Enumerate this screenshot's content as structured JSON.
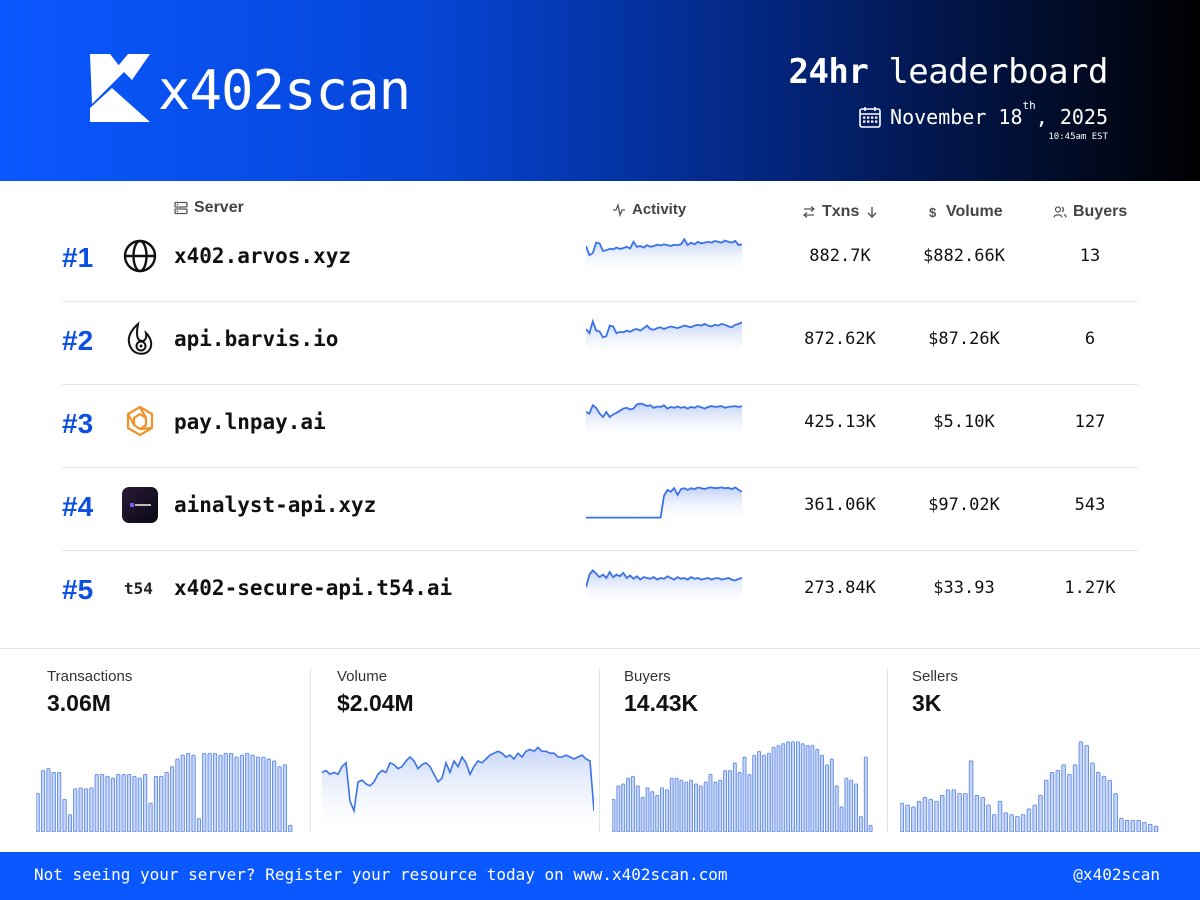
{
  "header": {
    "brand": "x402scan",
    "title_bold": "24hr",
    "title_rest": " leaderboard",
    "date_prefix": "November 18",
    "date_suffix": "th",
    "date_year": ", 2025",
    "time": "10:45am EST"
  },
  "columns": {
    "server": "Server",
    "activity": "Activity",
    "txns": "Txns",
    "volume": "Volume",
    "buyers": "Buyers"
  },
  "rows": [
    {
      "rank": "#1",
      "name": "x402.arvos.xyz",
      "txns": "882.7K",
      "volume": "$882.66K",
      "buyers": "13",
      "icon": "globe-icon",
      "activity": [
        62,
        40,
        45,
        70,
        68,
        50,
        52,
        55,
        54,
        58,
        55,
        57,
        60,
        56,
        72,
        60,
        62,
        58,
        64,
        60,
        62,
        65,
        63,
        66,
        64,
        62,
        65,
        64,
        66,
        78,
        64,
        70,
        66,
        72,
        68,
        70,
        72,
        70,
        74,
        72,
        70,
        75,
        72,
        70,
        74,
        64,
        66
      ]
    },
    {
      "rank": "#2",
      "name": "api.barvis.io",
      "txns": "872.62K",
      "volume": "$87.26K",
      "buyers": "6",
      "icon": "flame-icon",
      "activity": [
        62,
        52,
        80,
        58,
        56,
        42,
        45,
        70,
        68,
        52,
        55,
        54,
        58,
        55,
        60,
        62,
        58,
        64,
        70,
        62,
        60,
        64,
        66,
        62,
        65,
        68,
        66,
        64,
        67,
        70,
        68,
        66,
        70,
        72,
        70,
        74,
        70,
        68,
        72,
        70,
        74,
        72,
        68,
        66,
        72,
        74,
        78
      ]
    },
    {
      "rank": "#3",
      "name": "pay.lnpay.ai",
      "txns": "425.13K",
      "volume": "$5.10K",
      "buyers": "127",
      "icon": "hexagon-icon",
      "activity": [
        62,
        58,
        78,
        72,
        58,
        50,
        62,
        50,
        56,
        60,
        65,
        70,
        72,
        68,
        70,
        80,
        82,
        80,
        76,
        78,
        72,
        75,
        74,
        78,
        70,
        74,
        72,
        75,
        72,
        74,
        70,
        74,
        72,
        76,
        73,
        70,
        74,
        76,
        74,
        75,
        76,
        72,
        74,
        75,
        76,
        74,
        76
      ]
    },
    {
      "rank": "#4",
      "name": "ainalyst-api.xyz",
      "txns": "361.06K",
      "volume": "$97.02K",
      "buyers": "543",
      "icon": "ainalyst-logo",
      "activity": [
        8,
        8,
        8,
        8,
        8,
        8,
        8,
        8,
        8,
        8,
        8,
        8,
        8,
        8,
        8,
        8,
        8,
        8,
        8,
        8,
        8,
        8,
        8,
        60,
        74,
        70,
        78,
        62,
        76,
        78,
        74,
        78,
        76,
        80,
        78,
        76,
        79,
        80,
        78,
        79,
        80,
        78,
        79,
        76,
        80,
        74,
        70
      ]
    },
    {
      "rank": "#5",
      "name": "x402-secure-api.t54.ai",
      "txns": "273.84K",
      "volume": "$33.93",
      "buyers": "1.27K",
      "icon": "t54-logo",
      "activity": [
        40,
        70,
        80,
        72,
        64,
        70,
        62,
        76,
        64,
        70,
        66,
        74,
        62,
        68,
        60,
        66,
        58,
        64,
        62,
        60,
        64,
        58,
        62,
        60,
        66,
        62,
        58,
        64,
        60,
        62,
        58,
        64,
        60,
        62,
        58,
        60,
        62,
        58,
        61,
        62,
        58,
        60,
        62,
        58,
        56,
        60,
        62
      ]
    }
  ],
  "stats": [
    {
      "label": "Transactions",
      "value": "3.06M",
      "chart": "bars",
      "values": [
        40,
        64,
        66,
        62,
        62,
        34,
        18,
        45,
        46,
        45,
        46,
        60,
        60,
        58,
        56,
        60,
        60,
        60,
        58,
        56,
        60,
        30,
        58,
        58,
        62,
        68,
        76,
        80,
        82,
        80,
        14,
        82,
        82,
        82,
        80,
        82,
        82,
        78,
        80,
        82,
        80,
        78,
        78,
        76,
        74,
        68,
        70,
        7
      ]
    },
    {
      "label": "Volume",
      "value": "$2.04M",
      "chart": "area",
      "values": [
        60,
        62,
        58,
        60,
        58,
        66,
        70,
        30,
        20,
        50,
        52,
        48,
        46,
        50,
        58,
        62,
        60,
        70,
        68,
        64,
        66,
        72,
        76,
        72,
        64,
        68,
        70,
        66,
        58,
        50,
        54,
        70,
        60,
        72,
        66,
        76,
        70,
        58,
        66,
        72,
        70,
        74,
        78,
        80,
        82,
        80,
        76,
        78,
        74,
        80,
        76,
        82,
        84,
        82,
        86,
        82,
        82,
        80,
        80,
        76,
        76,
        78,
        76,
        74,
        76,
        78,
        74,
        72,
        20
      ]
    },
    {
      "label": "Buyers",
      "value": "14.43K",
      "chart": "bars",
      "values": [
        34,
        48,
        50,
        56,
        58,
        48,
        36,
        46,
        42,
        38,
        46,
        44,
        56,
        56,
        54,
        52,
        54,
        50,
        48,
        52,
        60,
        52,
        54,
        64,
        64,
        72,
        62,
        78,
        60,
        80,
        84,
        80,
        82,
        88,
        90,
        92,
        94,
        94,
        94,
        92,
        90,
        90,
        86,
        80,
        70,
        76,
        48,
        26,
        56,
        54,
        50,
        16,
        78,
        7
      ]
    },
    {
      "label": "Sellers",
      "value": "3K",
      "chart": "bars",
      "values": [
        30,
        28,
        26,
        32,
        36,
        34,
        32,
        38,
        44,
        44,
        40,
        40,
        74,
        38,
        36,
        28,
        18,
        32,
        20,
        18,
        16,
        18,
        24,
        28,
        38,
        54,
        62,
        64,
        70,
        60,
        70,
        94,
        90,
        72,
        62,
        58,
        54,
        40,
        14,
        12,
        12,
        12,
        10,
        8,
        6
      ]
    }
  ],
  "footer": {
    "message": "Not seeing your server? Register your resource today on www.x402scan.com",
    "handle": "@x402scan"
  },
  "colors": {
    "accent": "#0a58ff",
    "rank": "#0d4fe0",
    "line": "#3b72e8",
    "fill": "#c8d6f7"
  }
}
